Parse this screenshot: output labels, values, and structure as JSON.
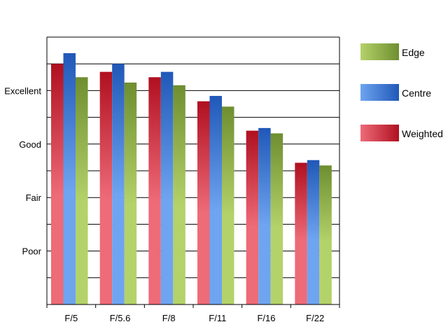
{
  "chart_data": {
    "type": "bar",
    "categories": [
      "F/5",
      "F/5.6",
      "F/8",
      "F/11",
      "F/16",
      "F/22"
    ],
    "y_tick_labels": [
      {
        "label": "Excellent",
        "value": 8
      },
      {
        "label": "Good",
        "value": 6
      },
      {
        "label": "Fair",
        "value": 4
      },
      {
        "label": "Poor",
        "value": 2
      }
    ],
    "ylim": [
      0,
      10
    ],
    "grid": true,
    "legend_position": "right",
    "series": [
      {
        "name": "Weighted",
        "values": [
          9.0,
          8.7,
          8.5,
          7.6,
          6.5,
          5.3
        ],
        "color_light": "#ee6b78",
        "color_dark": "#b01020"
      },
      {
        "name": "Centre",
        "values": [
          9.4,
          9.0,
          8.7,
          7.8,
          6.6,
          5.4
        ],
        "color_light": "#6ea4f0",
        "color_dark": "#2058b8"
      },
      {
        "name": "Edge",
        "values": [
          8.5,
          8.3,
          8.2,
          7.4,
          6.4,
          5.2
        ],
        "color_light": "#b4d26a",
        "color_dark": "#6e8e30"
      }
    ],
    "legend_order": [
      "Edge",
      "Centre",
      "Weighted"
    ]
  }
}
